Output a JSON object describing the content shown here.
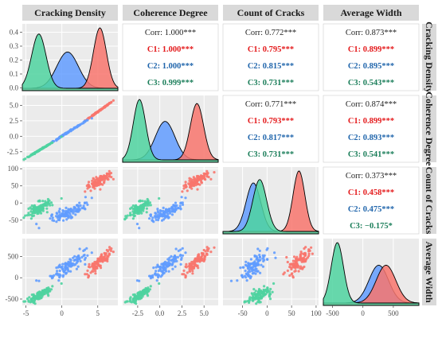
{
  "chart_data": {
    "type": "scatter-matrix",
    "variables": [
      "Cracking Density",
      "Coherence Degree",
      "Count of Cracks",
      "Average Width"
    ],
    "groups": [
      "C1",
      "C2",
      "C3"
    ],
    "colors": {
      "C1": "#f8766d",
      "C2": "#619cff",
      "C3": "#4fd3a0",
      "corr": "#222222",
      "C1_text": "#e41a1c",
      "C2_text": "#2166ac",
      "C3_text": "#1b7e5a"
    },
    "ranges": {
      "Cracking Density": [
        -5.5,
        7.8
      ],
      "Coherence Degree": [
        -4.2,
        6.6
      ],
      "Count of Cracks": [
        -90,
        105
      ],
      "Average Width": [
        -650,
        920
      ]
    },
    "ticks": {
      "Cracking Density": [
        -5,
        0,
        5
      ],
      "Coherence Degree": [
        -2.5,
        0.0,
        2.5,
        5.0
      ],
      "Count of Cracks": [
        -50,
        0,
        50,
        100
      ],
      "Average Width": [
        -500,
        0,
        500
      ]
    },
    "tick_labels": {
      "Cracking Density": [
        "-5",
        "0",
        "5"
      ],
      "Coherence Degree": [
        "-2.5",
        "0.0",
        "2.5",
        "5.0"
      ],
      "Count of Cracks": [
        "-50",
        "0",
        "50",
        "100"
      ],
      "Average Width": [
        "-500",
        "0",
        "500"
      ]
    },
    "density_y_ticks": {
      "values": [
        0.0,
        0.1,
        0.2,
        0.3,
        0.4
      ],
      "labels": [
        "0.0",
        "0.1",
        "0.2",
        "0.3",
        "0.4"
      ],
      "range": [
        -0.02,
        0.46
      ]
    },
    "group_stats": {
      "C1": {
        "Cracking Density": [
          5.3,
          0.9
        ],
        "Coherence Degree": [
          4.2,
          0.75
        ],
        "Count of Cracks": [
          65,
          12
        ],
        "Average Width": [
          380,
          160
        ]
      },
      "C2": {
        "Cracking Density": [
          0.8,
          1.5
        ],
        "Coherence Degree": [
          0.6,
          1.1
        ],
        "Count of Cracks": [
          -28,
          15
        ],
        "Average Width": [
          260,
          160
        ]
      },
      "C3": {
        "Cracking Density": [
          -3.2,
          1.0
        ],
        "Coherence Degree": [
          -2.3,
          0.7
        ],
        "Count of Cracks": [
          -15,
          14
        ],
        "Average Width": [
          -420,
          100
        ]
      }
    },
    "correlations": [
      {
        "row": 0,
        "col": 1,
        "overall": "Corr: 1.000***",
        "C1": "C1: 1.000***",
        "C2": "C2: 1.000***",
        "C3": "C3: 0.999***"
      },
      {
        "row": 0,
        "col": 2,
        "overall": "Corr: 0.772***",
        "C1": "C1: 0.795***",
        "C2": "C2: 0.815***",
        "C3": "C3: 0.731***"
      },
      {
        "row": 0,
        "col": 3,
        "overall": "Corr: 0.873***",
        "C1": "C1: 0.899***",
        "C2": "C2: 0.895***",
        "C3": "C3: 0.543***"
      },
      {
        "row": 1,
        "col": 2,
        "overall": "Corr: 0.771***",
        "C1": "C1: 0.793***",
        "C2": "C2: 0.817***",
        "C3": "C3: 0.731***"
      },
      {
        "row": 1,
        "col": 3,
        "overall": "Corr: 0.874***",
        "C1": "C1: 0.899***",
        "C2": "C2: 0.893***",
        "C3": "C3: 0.541***"
      },
      {
        "row": 2,
        "col": 3,
        "overall": "Corr: 0.373***",
        "C1": "C1: 0.458***",
        "C2": "C2: 0.475***",
        "C3": "C3: −0.175*"
      }
    ],
    "grid": true,
    "legend": "none"
  }
}
